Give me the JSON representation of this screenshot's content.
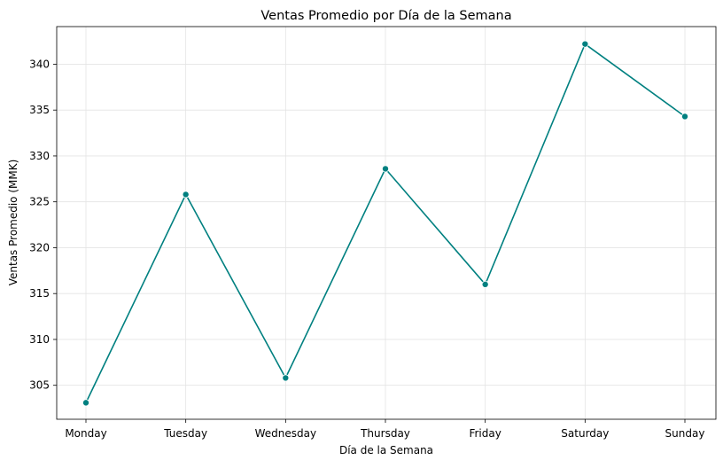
{
  "chart_data": {
    "type": "line",
    "title": "Ventas Promedio por Día de la Semana",
    "xlabel": "Día de la Semana",
    "ylabel": "Ventas Promedio (MMK)",
    "categories": [
      "Monday",
      "Tuesday",
      "Wednesday",
      "Thursday",
      "Friday",
      "Saturday",
      "Sunday"
    ],
    "series": [
      {
        "values": [
          303.1,
          325.8,
          305.8,
          328.6,
          316.0,
          342.2,
          334.3
        ]
      }
    ],
    "ylim": [
      301.3,
      344.1
    ],
    "yticks": [
      "305",
      "310",
      "315",
      "320",
      "325",
      "330",
      "335",
      "340"
    ],
    "grid": true,
    "marker": "circle",
    "line_color": "#008080"
  }
}
